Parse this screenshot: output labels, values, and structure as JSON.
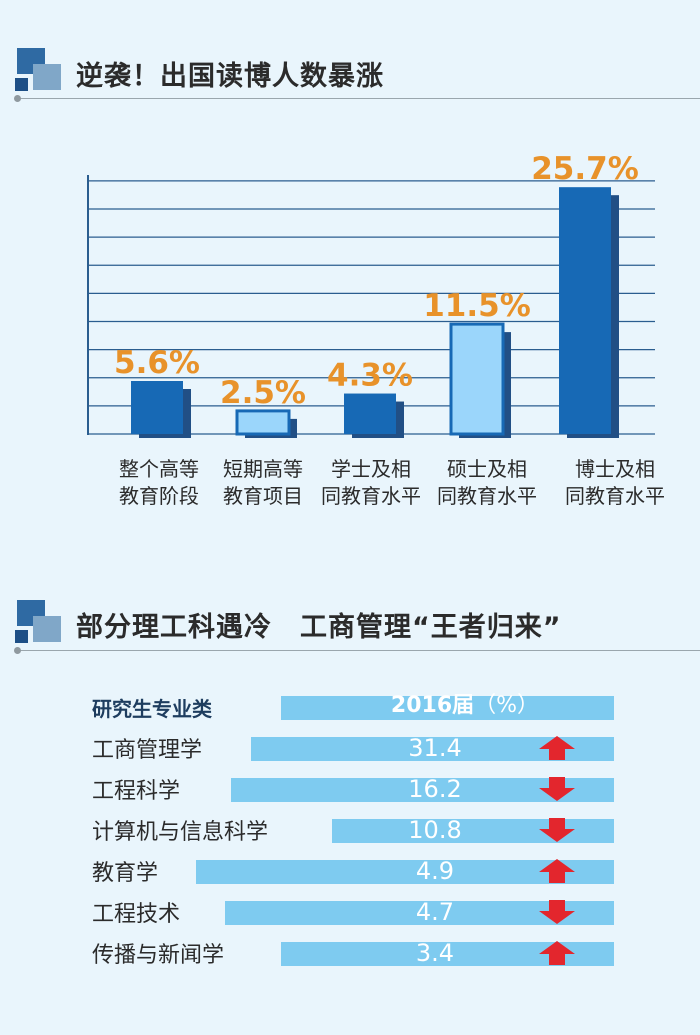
{
  "section1": {
    "title": "逆袭！出国读博人数暴涨"
  },
  "section2": {
    "title": "部分理工科遇冷　工商管理“王者归来”"
  },
  "chart_data": {
    "type": "bar",
    "categories": [
      [
        "整个高等",
        "教育阶段"
      ],
      [
        "短期高等",
        "教育项目"
      ],
      [
        "学士及相",
        "同教育水平"
      ],
      [
        "硕士及相",
        "同教育水平"
      ],
      [
        "博士及相",
        "同教育水平"
      ]
    ],
    "values": [
      5.6,
      2.5,
      4.3,
      11.5,
      25.7
    ],
    "value_labels": [
      "5.6%",
      "2.5%",
      "4.3%",
      "11.5%",
      "25.7%"
    ],
    "bar_styles": [
      "dark",
      "light",
      "dark",
      "light",
      "dark"
    ],
    "ylim": [
      0,
      28
    ],
    "grid": true,
    "colors": {
      "dark_bar": "#1769b5",
      "dark_shadow": "#214f85",
      "light_bar": "#9bd6fb",
      "light_border": "#1769b5",
      "value_label": "#e8922a",
      "grid": "#2a5d8f"
    }
  },
  "table": {
    "header": {
      "label": "研究生专业类",
      "year": "2016届",
      "unit": "（%）"
    },
    "rows": [
      {
        "label": "工商管理学",
        "value": "31.4",
        "trend": "up"
      },
      {
        "label": "工程科学",
        "value": "16.2",
        "trend": "down"
      },
      {
        "label": "计算机与信息科学",
        "value": "10.8",
        "trend": "down"
      },
      {
        "label": "教育学",
        "value": "4.9",
        "trend": "up"
      },
      {
        "label": "工程技术",
        "value": "4.7",
        "trend": "down"
      },
      {
        "label": "传播与新闻学",
        "value": "3.4",
        "trend": "up"
      }
    ],
    "colors": {
      "bar": "#7ecbf0",
      "arrow": "#e3262d"
    }
  }
}
